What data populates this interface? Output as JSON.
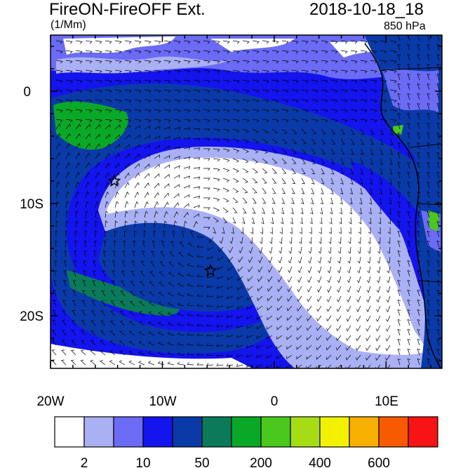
{
  "header": {
    "title": "FireON-FireOFF Ext.",
    "units": "(1/Mm)",
    "datetime": "2018-10-18_18",
    "level": "850 hPa"
  },
  "axes": {
    "lon_labels": [
      "20W",
      "10W",
      "0",
      "10E"
    ],
    "lat_labels": [
      "0",
      "10S",
      "20S"
    ]
  },
  "colorbar": {
    "colors": [
      "#ffffff",
      "#aab0f4",
      "#6b6bf6",
      "#1414ee",
      "#0a3aa8",
      "#0a7a5a",
      "#0aa828",
      "#4ac81e",
      "#a6dc14",
      "#f2f200",
      "#f8b000",
      "#f85a00",
      "#f81414"
    ],
    "labels": [
      "2",
      "10",
      "50",
      "200",
      "400",
      "600"
    ]
  },
  "markers": [
    {
      "name": "star-marker-west",
      "lon": -14.3,
      "lat": -8.0
    },
    {
      "name": "star-marker-south",
      "lon": -5.7,
      "lat": -16.0
    }
  ]
}
